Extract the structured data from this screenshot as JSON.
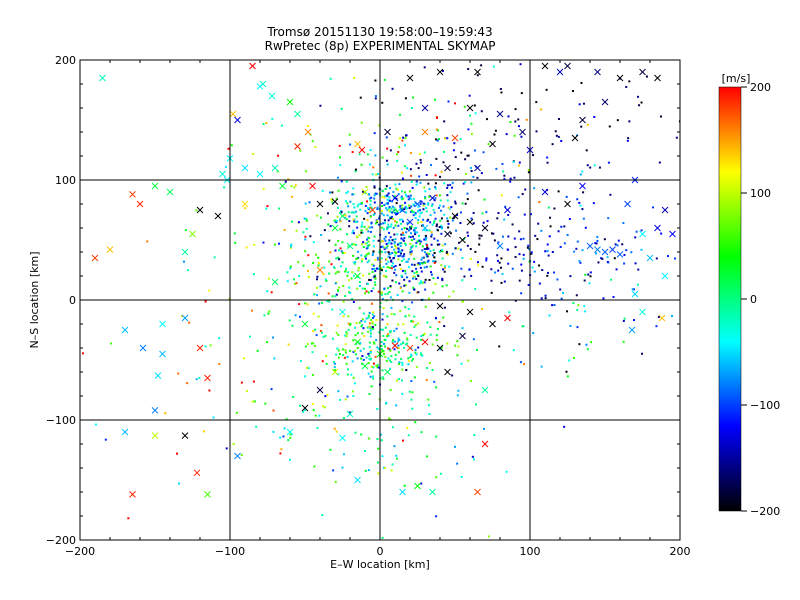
{
  "chart_data": {
    "type": "scatter",
    "title": "Tromsø 20151130 19:58:00–19:59:43",
    "subtitle": "RwPretec (8p) EXPERIMENTAL SKYMAP",
    "xlabel": "E–W location [km]",
    "ylabel": "N–S location [km]",
    "xlim": [
      -200,
      200
    ],
    "ylim": [
      -200,
      200
    ],
    "x_ticks": [
      "−200",
      "−100",
      "0",
      "100",
      "200"
    ],
    "y_ticks": [
      "−200",
      "−100",
      "0",
      "100",
      "200"
    ],
    "grid": true,
    "gridlines_x": [
      -100,
      0,
      100
    ],
    "gridlines_y": [
      -100,
      0,
      100
    ],
    "marker_types": [
      "cross",
      "dot"
    ],
    "colorbar": {
      "label": "[m/s]",
      "range": [
        -200,
        200
      ],
      "ticks": [
        "200",
        "100",
        "0",
        "−100",
        "−200"
      ],
      "tick_values": [
        200,
        100,
        0,
        -100,
        -200
      ],
      "colormap": [
        "#ff0000",
        "#ffff00",
        "#00ff00",
        "#00ffff",
        "#0000ff",
        "#000000"
      ]
    },
    "series": [
      {
        "marker": "cross",
        "note": "large-scatter (representative points, velocity in m/s)",
        "points": [
          {
            "x": -185,
            "y": 185,
            "v": -20
          },
          {
            "x": -165,
            "y": 88,
            "v": 180
          },
          {
            "x": -180,
            "y": 42,
            "v": 140
          },
          {
            "x": -190,
            "y": 35,
            "v": 180
          },
          {
            "x": -160,
            "y": 80,
            "v": 190
          },
          {
            "x": -150,
            "y": 95,
            "v": 20
          },
          {
            "x": -140,
            "y": 90,
            "v": 10
          },
          {
            "x": -130,
            "y": 40,
            "v": -10
          },
          {
            "x": -125,
            "y": 55,
            "v": 80
          },
          {
            "x": -120,
            "y": 75,
            "v": -200
          },
          {
            "x": -108,
            "y": 70,
            "v": -200
          },
          {
            "x": -105,
            "y": 105,
            "v": -30
          },
          {
            "x": -100,
            "y": 118,
            "v": -40
          },
          {
            "x": -98,
            "y": 155,
            "v": 140
          },
          {
            "x": -85,
            "y": 195,
            "v": 200
          },
          {
            "x": -78,
            "y": 180,
            "v": -20
          },
          {
            "x": -72,
            "y": 170,
            "v": -30
          },
          {
            "x": -60,
            "y": 165,
            "v": 40
          },
          {
            "x": -55,
            "y": 155,
            "v": -10
          },
          {
            "x": -48,
            "y": 140,
            "v": 160
          },
          {
            "x": -55,
            "y": 128,
            "v": 190
          },
          {
            "x": -90,
            "y": 110,
            "v": -50
          },
          {
            "x": -80,
            "y": 105,
            "v": -40
          },
          {
            "x": -65,
            "y": 95,
            "v": 20
          },
          {
            "x": -45,
            "y": 95,
            "v": 200
          },
          {
            "x": -40,
            "y": 80,
            "v": -200
          },
          {
            "x": -30,
            "y": 82,
            "v": -200
          },
          {
            "x": -25,
            "y": 70,
            "v": 0
          },
          {
            "x": -30,
            "y": 60,
            "v": 20
          },
          {
            "x": -20,
            "y": 45,
            "v": -10
          },
          {
            "x": -10,
            "y": 90,
            "v": 100
          },
          {
            "x": -5,
            "y": 75,
            "v": 180
          },
          {
            "x": 10,
            "y": 85,
            "v": -120
          },
          {
            "x": 15,
            "y": 75,
            "v": -100
          },
          {
            "x": 20,
            "y": 65,
            "v": -110
          },
          {
            "x": 25,
            "y": 80,
            "v": -90
          },
          {
            "x": 30,
            "y": 60,
            "v": -60
          },
          {
            "x": 35,
            "y": 85,
            "v": -140
          },
          {
            "x": 50,
            "y": 70,
            "v": -200
          },
          {
            "x": 60,
            "y": 65,
            "v": -200
          },
          {
            "x": 55,
            "y": 50,
            "v": -200
          },
          {
            "x": 45,
            "y": 55,
            "v": -180
          },
          {
            "x": 70,
            "y": 60,
            "v": -190
          },
          {
            "x": 80,
            "y": 45,
            "v": -80
          },
          {
            "x": 85,
            "y": 75,
            "v": -130
          },
          {
            "x": 110,
            "y": 90,
            "v": -130
          },
          {
            "x": 125,
            "y": 80,
            "v": -200
          },
          {
            "x": 135,
            "y": 95,
            "v": -120
          },
          {
            "x": 140,
            "y": 45,
            "v": -90
          },
          {
            "x": 145,
            "y": 42,
            "v": -80
          },
          {
            "x": 150,
            "y": 40,
            "v": -90
          },
          {
            "x": 155,
            "y": 42,
            "v": -100
          },
          {
            "x": 160,
            "y": 38,
            "v": -90
          },
          {
            "x": 165,
            "y": 80,
            "v": -100
          },
          {
            "x": 170,
            "y": 100,
            "v": -110
          },
          {
            "x": 175,
            "y": 55,
            "v": -40
          },
          {
            "x": 185,
            "y": 60,
            "v": -130
          },
          {
            "x": 190,
            "y": 75,
            "v": -140
          },
          {
            "x": 195,
            "y": 55,
            "v": -120
          },
          {
            "x": 180,
            "y": 35,
            "v": -60
          },
          {
            "x": 190,
            "y": 20,
            "v": -40
          },
          {
            "x": 170,
            "y": 5,
            "v": -50
          },
          {
            "x": 175,
            "y": -10,
            "v": -30
          },
          {
            "x": 188,
            "y": -15,
            "v": 140
          },
          {
            "x": 168,
            "y": -25,
            "v": -70
          },
          {
            "x": 135,
            "y": 150,
            "v": -180
          },
          {
            "x": 130,
            "y": 135,
            "v": -200
          },
          {
            "x": 120,
            "y": 190,
            "v": -140
          },
          {
            "x": 125,
            "y": 195,
            "v": -180
          },
          {
            "x": 110,
            "y": 195,
            "v": -200
          },
          {
            "x": 145,
            "y": 190,
            "v": -160
          },
          {
            "x": 160,
            "y": 185,
            "v": -200
          },
          {
            "x": 150,
            "y": 165,
            "v": -170
          },
          {
            "x": 175,
            "y": 190,
            "v": -180
          },
          {
            "x": 185,
            "y": 185,
            "v": -200
          },
          {
            "x": 65,
            "y": 190,
            "v": -200
          },
          {
            "x": 40,
            "y": 190,
            "v": -200
          },
          {
            "x": 20,
            "y": 185,
            "v": -200
          },
          {
            "x": 30,
            "y": 160,
            "v": -150
          },
          {
            "x": 60,
            "y": 160,
            "v": -200
          },
          {
            "x": 75,
            "y": 130,
            "v": -200
          },
          {
            "x": 80,
            "y": 155,
            "v": -160
          },
          {
            "x": 95,
            "y": 140,
            "v": -170
          },
          {
            "x": 100,
            "y": 125,
            "v": -130
          },
          {
            "x": 5,
            "y": 140,
            "v": -180
          },
          {
            "x": -15,
            "y": 130,
            "v": 140
          },
          {
            "x": -12,
            "y": 125,
            "v": 200
          },
          {
            "x": 30,
            "y": 140,
            "v": 160
          },
          {
            "x": 50,
            "y": 135,
            "v": 180
          },
          {
            "x": 45,
            "y": 110,
            "v": -180
          },
          {
            "x": 65,
            "y": 110,
            "v": -150
          },
          {
            "x": -130,
            "y": -15,
            "v": -70
          },
          {
            "x": -145,
            "y": -20,
            "v": -40
          },
          {
            "x": -170,
            "y": -25,
            "v": -60
          },
          {
            "x": -158,
            "y": -40,
            "v": -80
          },
          {
            "x": -145,
            "y": -45,
            "v": -60
          },
          {
            "x": -120,
            "y": -40,
            "v": 190
          },
          {
            "x": -115,
            "y": -65,
            "v": 190
          },
          {
            "x": -148,
            "y": -63,
            "v": -50
          },
          {
            "x": -170,
            "y": -110,
            "v": -60
          },
          {
            "x": -150,
            "y": -92,
            "v": -80
          },
          {
            "x": -130,
            "y": -113,
            "v": -200
          },
          {
            "x": -150,
            "y": -113,
            "v": 100
          },
          {
            "x": -122,
            "y": -144,
            "v": 190
          },
          {
            "x": -115,
            "y": -162,
            "v": 60
          },
          {
            "x": -165,
            "y": -162,
            "v": 190
          },
          {
            "x": -95,
            "y": -130,
            "v": -80
          },
          {
            "x": -60,
            "y": -110,
            "v": -40
          },
          {
            "x": -50,
            "y": -90,
            "v": -200
          },
          {
            "x": -40,
            "y": -75,
            "v": -180
          },
          {
            "x": -30,
            "y": -60,
            "v": 100
          },
          {
            "x": -20,
            "y": -95,
            "v": -20
          },
          {
            "x": -25,
            "y": -115,
            "v": -40
          },
          {
            "x": -15,
            "y": -150,
            "v": -50
          },
          {
            "x": 15,
            "y": -160,
            "v": -50
          },
          {
            "x": 25,
            "y": -155,
            "v": 40
          },
          {
            "x": 35,
            "y": -160,
            "v": -10
          },
          {
            "x": 65,
            "y": -160,
            "v": 180
          },
          {
            "x": 70,
            "y": -120,
            "v": 200
          },
          {
            "x": 70,
            "y": -75,
            "v": -10
          },
          {
            "x": 45,
            "y": -60,
            "v": -200
          },
          {
            "x": 40,
            "y": -40,
            "v": -200
          },
          {
            "x": 30,
            "y": -35,
            "v": 200
          },
          {
            "x": 20,
            "y": -40,
            "v": 180
          },
          {
            "x": 10,
            "y": -38,
            "v": 200
          },
          {
            "x": 0,
            "y": -45,
            "v": 30
          },
          {
            "x": -15,
            "y": -35,
            "v": 40
          },
          {
            "x": -10,
            "y": -55,
            "v": 20
          },
          {
            "x": 5,
            "y": -60,
            "v": 10
          },
          {
            "x": 55,
            "y": -30,
            "v": -180
          },
          {
            "x": 75,
            "y": -20,
            "v": -200
          },
          {
            "x": 85,
            "y": -15,
            "v": 200
          },
          {
            "x": 60,
            "y": -10,
            "v": -200
          },
          {
            "x": 40,
            "y": -5,
            "v": -200
          },
          {
            "x": -25,
            "y": -10,
            "v": -30
          },
          {
            "x": -50,
            "y": -20,
            "v": 20
          },
          {
            "x": -70,
            "y": 15,
            "v": 10
          },
          {
            "x": -40,
            "y": 25,
            "v": 160
          },
          {
            "x": -15,
            "y": 20,
            "v": 30
          },
          {
            "x": -70,
            "y": 110,
            "v": -20
          },
          {
            "x": -95,
            "y": 150,
            "v": -130
          },
          {
            "x": -80,
            "y": 178,
            "v": -40
          },
          {
            "x": -102,
            "y": 100,
            "v": -40
          },
          {
            "x": -90,
            "y": 80,
            "v": 130
          }
        ]
      },
      {
        "marker": "dot",
        "note": "small-dot (representative clusters, velocity in m/s)",
        "clusters": [
          {
            "cx": 10,
            "cy": 75,
            "sx": 18,
            "sy": 12,
            "n": 220,
            "v": -60,
            "vs": 40
          },
          {
            "cx": 12,
            "cy": 40,
            "sx": 18,
            "sy": 14,
            "n": 200,
            "v": -90,
            "vs": 60
          },
          {
            "cx": -5,
            "cy": 30,
            "sx": 28,
            "sy": 35,
            "n": 320,
            "v": 20,
            "vs": 70
          },
          {
            "cx": 0,
            "cy": -40,
            "sx": 20,
            "sy": 18,
            "n": 220,
            "v": 10,
            "vs": 60
          },
          {
            "cx": 60,
            "cy": 50,
            "sx": 40,
            "sy": 30,
            "n": 220,
            "v": -150,
            "vs": 50
          },
          {
            "cx": 150,
            "cy": 45,
            "sx": 30,
            "sy": 25,
            "n": 80,
            "v": -110,
            "vs": 40
          },
          {
            "cx": 0,
            "cy": -100,
            "sx": 40,
            "sy": 40,
            "n": 120,
            "v": -10,
            "vs": 60
          },
          {
            "cx": -30,
            "cy": 60,
            "sx": 40,
            "sy": 50,
            "n": 160,
            "v": 40,
            "vs": 90
          },
          {
            "cx": 110,
            "cy": 160,
            "sx": 60,
            "sy": 30,
            "n": 90,
            "v": -170,
            "vs": 40
          },
          {
            "cx": 40,
            "cy": 120,
            "sx": 40,
            "sy": 30,
            "n": 120,
            "v": -20,
            "vs": 120
          },
          {
            "cx": -100,
            "cy": -40,
            "sx": 60,
            "sy": 60,
            "n": 70,
            "v": 60,
            "vs": 120
          },
          {
            "cx": 120,
            "cy": -20,
            "sx": 40,
            "sy": 30,
            "n": 50,
            "v": -50,
            "vs": 90
          }
        ]
      }
    ]
  }
}
